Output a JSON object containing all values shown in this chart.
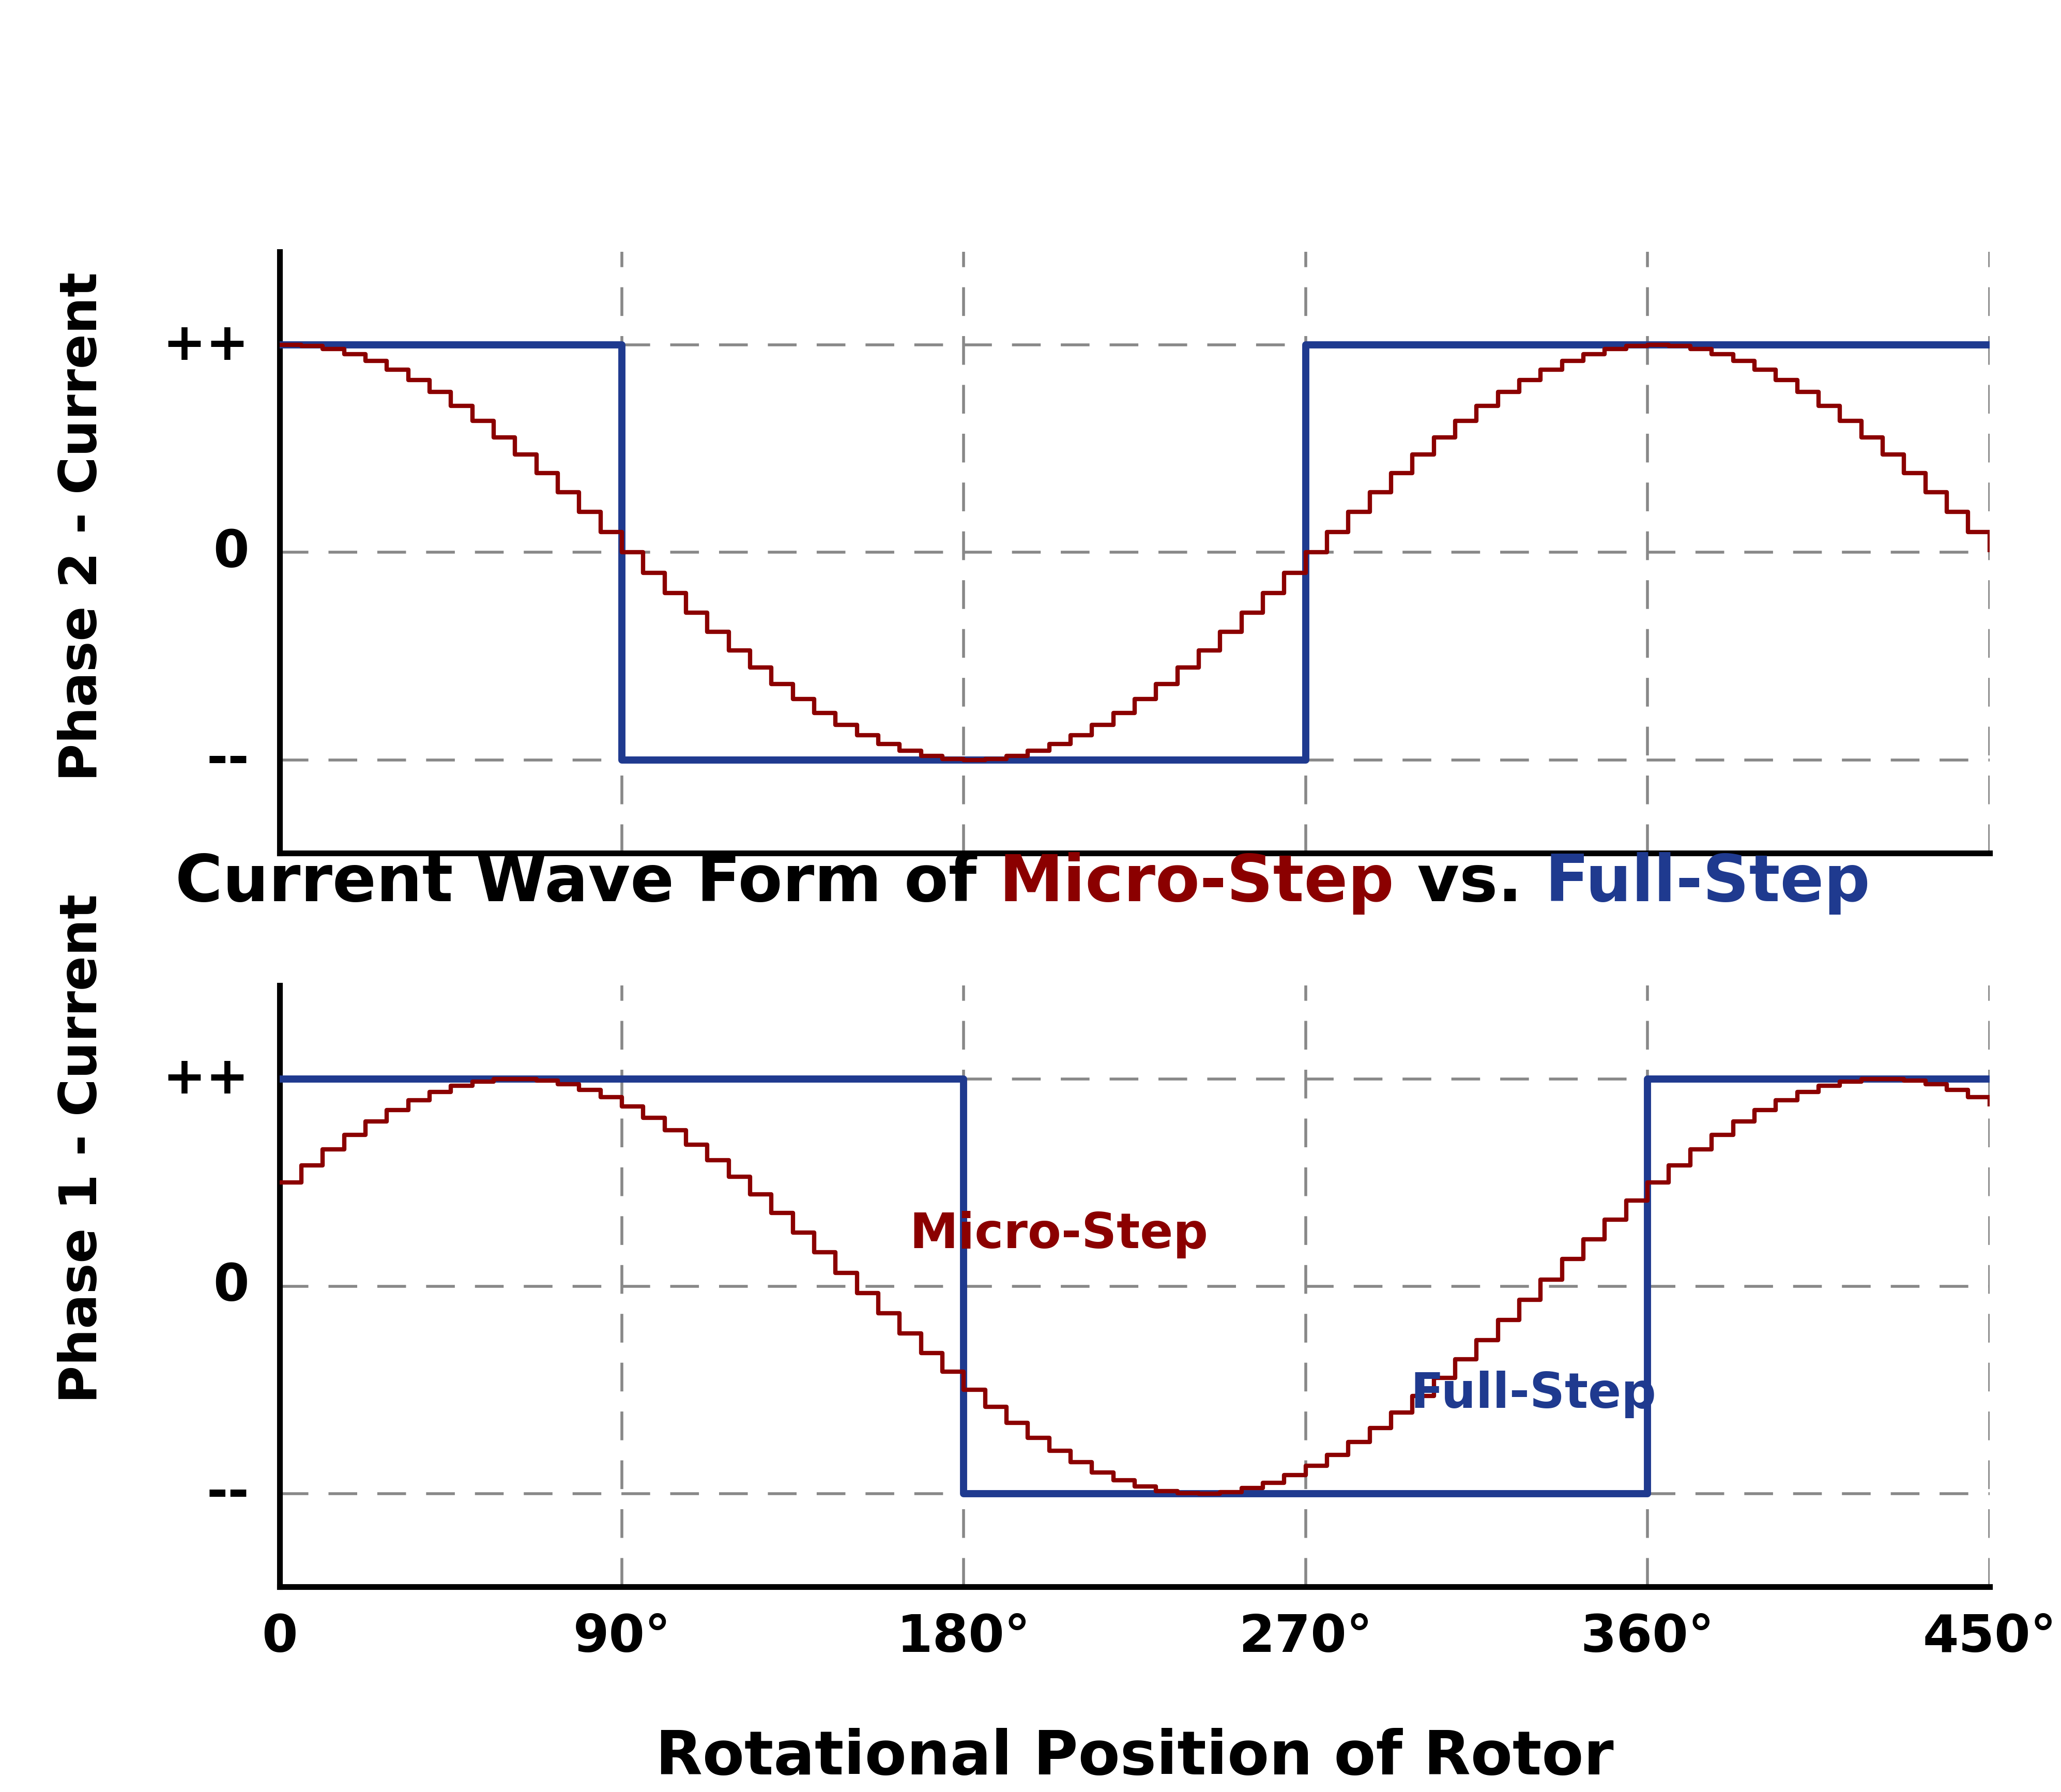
{
  "title_parts": [
    {
      "text": "Current Wave Form of ",
      "color": "#000000"
    },
    {
      "text": "Micro-Step",
      "color": "#8B0000"
    },
    {
      "text": " vs. ",
      "color": "#000000"
    },
    {
      "text": "Full-Step",
      "color": "#1F3A8F"
    }
  ],
  "xlabel": "Rotational Position of Rotor",
  "ylabel_top": "Phase 2 - Current",
  "ylabel_bottom": "Phase 1 - Current",
  "xtick_labels": [
    "0",
    "90°",
    "180°",
    "270°",
    "360°",
    "450°"
  ],
  "xtick_positions": [
    0,
    90,
    180,
    270,
    360,
    450
  ],
  "ytick_labels": [
    "++",
    "0",
    "--"
  ],
  "ytick_positions": [
    1.0,
    0.0,
    -1.0
  ],
  "xlim": [
    0,
    450
  ],
  "ylim": [
    -1.45,
    1.45
  ],
  "fullstep_color": "#1F3A8F",
  "microstep_color": "#8B0000",
  "fullstep_lw": 10,
  "microstep_lw": 6,
  "grid_color": "#888888",
  "grid_lw": 4,
  "microstep_label": "Micro-Step",
  "fullstep_label": "Full-Step",
  "n_microsteps_per_90": 16,
  "background_color": "#ffffff",
  "title_fontsize": 90,
  "ylabel_fontsize": 72,
  "ytick_fontsize": 72,
  "xtick_fontsize": 72,
  "xlabel_fontsize": 85,
  "legend_fontsize": 68,
  "spine_lw": 8
}
